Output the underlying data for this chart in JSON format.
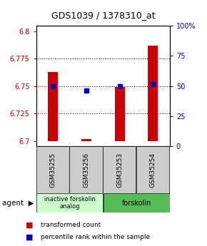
{
  "title": "GDS1039 / 1378310_at",
  "samples": [
    "GSM35255",
    "GSM35256",
    "GSM35253",
    "GSM35254"
  ],
  "bar_bottoms": [
    6.7,
    6.7,
    6.7,
    6.7
  ],
  "bar_tops": [
    6.763,
    6.702,
    6.749,
    6.787
  ],
  "blue_dots": [
    6.75,
    6.746,
    6.75,
    6.752
  ],
  "ylim_left": [
    6.695,
    6.805
  ],
  "yticks_left": [
    6.7,
    6.725,
    6.75,
    6.775,
    6.8
  ],
  "ytick_labels_left": [
    "6.7",
    "6.725",
    "6.75",
    "6.775",
    "6.8"
  ],
  "ylim_right": [
    0,
    100
  ],
  "yticks_right": [
    0,
    25,
    50,
    75,
    100
  ],
  "ytick_labels_right": [
    "0",
    "25",
    "50",
    "75",
    "100%"
  ],
  "bar_color": "#cc0000",
  "dot_color": "#0000cc",
  "group1_label": "inactive forskolin\nanalog",
  "group2_label": "forskolin",
  "group1_color": "#ccffcc",
  "group2_color": "#55bb55",
  "legend1": "transformed count",
  "legend2": "percentile rank within the sample",
  "grid_yticks": [
    6.725,
    6.75,
    6.775
  ],
  "bar_width": 0.3,
  "dot_size": 4,
  "sample_box_color": "#cccccc",
  "figsize": [
    2.9,
    3.45
  ],
  "dpi": 100
}
